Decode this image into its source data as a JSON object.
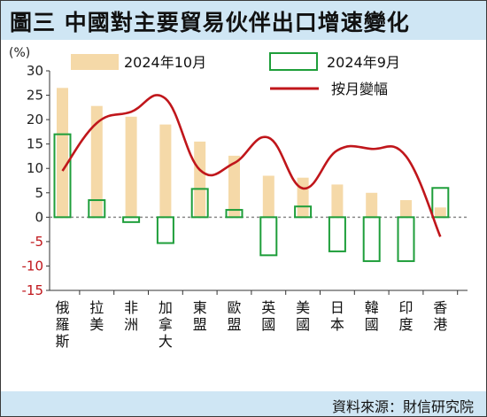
{
  "title": "圖三  中國對主要貿易伙伴出口增速變化",
  "source": "資料來源：財信研究院",
  "colors": {
    "bar_oct": "#f5d9a8",
    "bar_sep_stroke": "#1e9e3a",
    "line": "#c0161b",
    "title_bg": "#cfe6f4",
    "negative_tick": "#c0161b",
    "zero_line": "#888888"
  },
  "chart_data": {
    "type": "bar",
    "ylabel": "(%)",
    "ylim": [
      -15,
      30
    ],
    "yticks": [
      30,
      25,
      20,
      15,
      10,
      5,
      0,
      -5,
      -10,
      -15
    ],
    "categories": [
      "俄羅斯",
      "拉美",
      "非洲",
      "加拿大",
      "東盟",
      "歐盟",
      "英國",
      "美國",
      "日本",
      "韓國",
      "印度",
      "香港"
    ],
    "series": [
      {
        "name": "2024年10月",
        "kind": "bar",
        "values": [
          26.5,
          22.8,
          20.6,
          19.0,
          15.5,
          12.6,
          8.5,
          8.1,
          6.7,
          5.0,
          3.5,
          2.0
        ]
      },
      {
        "name": "2024年9月",
        "kind": "bar-outline",
        "values": [
          17.0,
          3.5,
          -1.0,
          -5.3,
          5.8,
          1.5,
          -7.8,
          2.2,
          -7.0,
          -9.0,
          -9.0,
          6.0
        ]
      },
      {
        "name": "按月變幅",
        "kind": "line",
        "values": [
          9.5,
          19.3,
          21.6,
          24.3,
          9.7,
          11.1,
          16.3,
          5.9,
          13.7,
          14.0,
          12.5,
          -4.0
        ]
      }
    ],
    "legend": [
      "2024年10月",
      "2024年9月",
      "按月變幅"
    ],
    "legend_placement": "top-right",
    "grid": false
  }
}
